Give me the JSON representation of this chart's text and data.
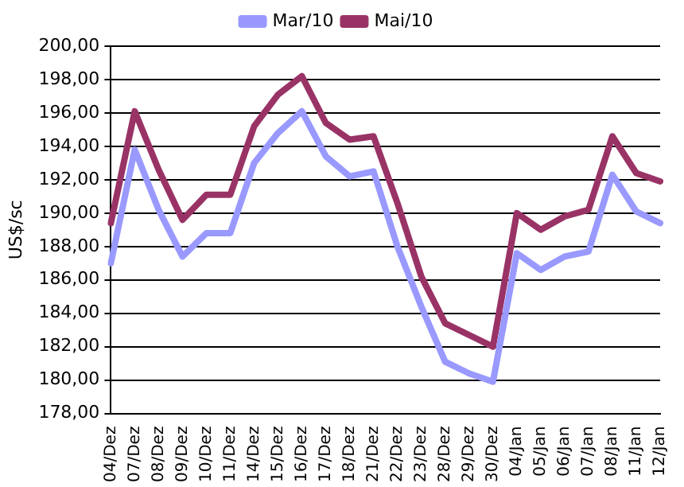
{
  "chart_data": {
    "type": "line",
    "ylabel": "US$/sc",
    "categories": [
      "04/Dez",
      "07/Dez",
      "08/Dez",
      "09/Dez",
      "10/Dez",
      "11/Dez",
      "14/Dez",
      "15/Dez",
      "16/Dez",
      "17/Dez",
      "18/Dez",
      "21/Dez",
      "22/Dez",
      "23/Dez",
      "28/Dez",
      "29/Dez",
      "30/Dez",
      "04/Jan",
      "05/Jan",
      "06/Jan",
      "07/Jan",
      "08/Jan",
      "11/Jan",
      "12/Jan"
    ],
    "series": [
      {
        "name": "Mar/10",
        "color": "#9999ff",
        "values": [
          187.0,
          193.8,
          190.2,
          187.4,
          188.8,
          188.8,
          193.0,
          194.8,
          196.1,
          193.4,
          192.2,
          192.5,
          188.0,
          184.4,
          181.1,
          180.4,
          179.9,
          187.6,
          186.6,
          187.4,
          187.7,
          192.3,
          190.1,
          189.4
        ]
      },
      {
        "name": "Mai/10",
        "color": "#993366",
        "values": [
          189.4,
          196.1,
          192.6,
          189.6,
          191.1,
          191.1,
          195.2,
          197.1,
          198.2,
          195.4,
          194.4,
          194.6,
          190.6,
          186.2,
          183.4,
          182.7,
          182.0,
          190.0,
          189.0,
          189.8,
          190.2,
          194.6,
          192.4,
          191.9
        ]
      }
    ],
    "ylim": [
      178,
      200
    ],
    "yticks": [
      {
        "value": 178,
        "label": "178,00"
      },
      {
        "value": 180,
        "label": "180,00"
      },
      {
        "value": 182,
        "label": "182,00"
      },
      {
        "value": 184,
        "label": "184,00"
      },
      {
        "value": 186,
        "label": "186,00"
      },
      {
        "value": 188,
        "label": "188,00"
      },
      {
        "value": 190,
        "label": "190,00"
      },
      {
        "value": 192,
        "label": "192,00"
      },
      {
        "value": 194,
        "label": "194,00"
      },
      {
        "value": 196,
        "label": "196,00"
      },
      {
        "value": 198,
        "label": "198,00"
      },
      {
        "value": 200,
        "label": "200,00"
      }
    ],
    "grid": "y",
    "legend": "top",
    "marker": "none",
    "line_style": "solid"
  }
}
